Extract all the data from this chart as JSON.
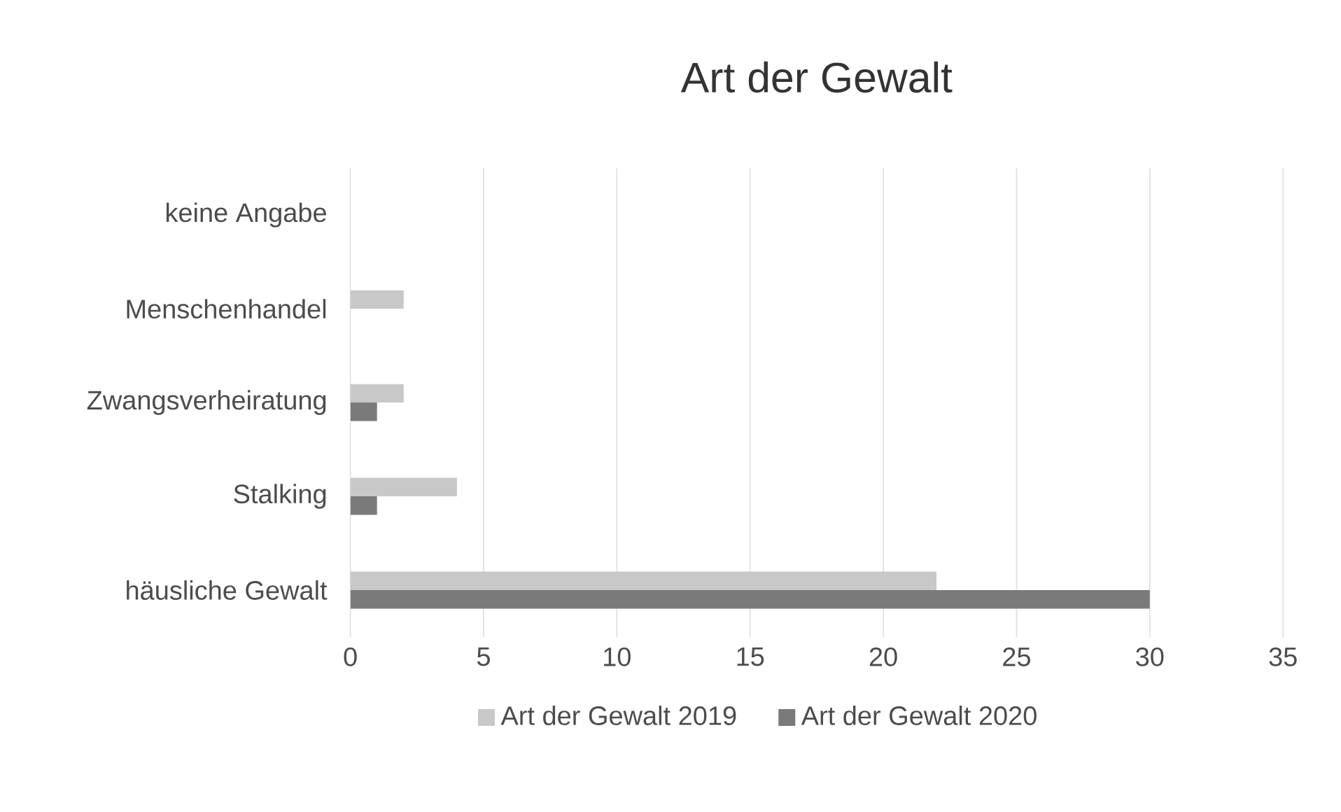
{
  "chart_data": {
    "type": "bar",
    "orientation": "horizontal",
    "title": "Art der Gewalt",
    "categories": [
      "keine Angabe",
      "Menschenhandel",
      "Zwangsverheiratung",
      "Stalking",
      "häusliche Gewalt"
    ],
    "series": [
      {
        "name": "Art der Gewalt 2019",
        "color": "#c8c8c8",
        "values": [
          0,
          2,
          2,
          4,
          22
        ]
      },
      {
        "name": "Art der Gewalt 2020",
        "color": "#7a7a7a",
        "values": [
          0,
          0,
          1,
          1,
          30
        ]
      }
    ],
    "xlim": [
      0,
      35
    ],
    "xticks": [
      0,
      5,
      10,
      15,
      20,
      25,
      30,
      35
    ],
    "grid": "x",
    "legend": "bottom"
  }
}
